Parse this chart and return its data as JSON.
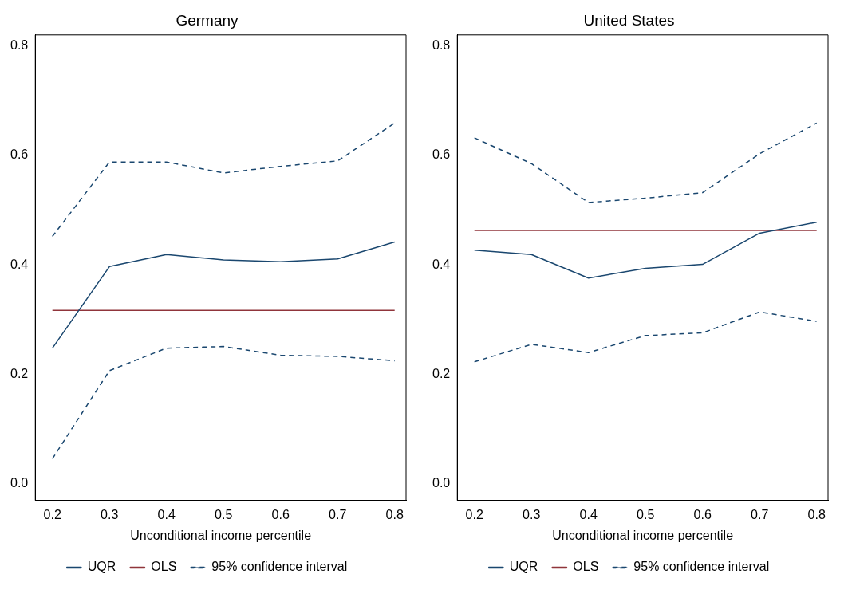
{
  "chart_data": [
    {
      "type": "line",
      "title": "Germany",
      "xlabel": "Unconditional income percentile",
      "x": [
        0.2,
        0.3,
        0.4,
        0.5,
        0.6,
        0.7,
        0.8
      ],
      "xlim": [
        0.17,
        0.82
      ],
      "xticks": [
        0.2,
        0.3,
        0.4,
        0.5,
        0.6,
        0.7,
        0.8
      ],
      "ylim": [
        -0.03,
        0.82
      ],
      "yticks": [
        {
          "value": 0,
          "label": "0.0"
        },
        0.2,
        0.4,
        0.6,
        0.8
      ],
      "grid": false,
      "legend": "bottom",
      "marker": "none",
      "series": [
        {
          "name": "UQR",
          "color": "#1a476f",
          "line_style": "solid",
          "values": [
            0.248,
            0.397,
            0.419,
            0.409,
            0.406,
            0.411,
            0.442
          ]
        },
        {
          "name": "OLS",
          "color": "#90353b",
          "line_style": "solid",
          "values": [
            0.317,
            0.317,
            0.317,
            0.317,
            0.317,
            0.317,
            0.317
          ]
        },
        {
          "name": "95% confidence interval",
          "color": "#1a476f",
          "line_style": "dashed",
          "values": [
            0.452,
            0.588,
            0.588,
            0.568,
            0.58,
            0.59,
            0.659
          ]
        },
        {
          "color": "#1a476f",
          "line_style": "dashed",
          "values": [
            0.046,
            0.207,
            0.248,
            0.251,
            0.235,
            0.233,
            0.225
          ]
        }
      ]
    },
    {
      "type": "line",
      "title": "United States",
      "xlabel": "Unconditional income percentile",
      "x": [
        0.2,
        0.3,
        0.4,
        0.5,
        0.6,
        0.7,
        0.8
      ],
      "xlim": [
        0.17,
        0.82
      ],
      "xticks": [
        0.2,
        0.3,
        0.4,
        0.5,
        0.6,
        0.7,
        0.8
      ],
      "ylim": [
        -0.03,
        0.82
      ],
      "yticks": [
        {
          "value": 0,
          "label": "0.0"
        },
        0.2,
        0.4,
        0.6,
        0.8
      ],
      "grid": false,
      "legend": "bottom",
      "marker": "none",
      "series": [
        {
          "name": "UQR",
          "color": "#1a476f",
          "line_style": "solid",
          "values": [
            0.427,
            0.419,
            0.376,
            0.394,
            0.401,
            0.458,
            0.478
          ]
        },
        {
          "name": "OLS",
          "color": "#90353b",
          "line_style": "solid",
          "values": [
            0.463,
            0.463,
            0.463,
            0.463,
            0.463,
            0.463,
            0.463
          ]
        },
        {
          "name": "95% confidence interval",
          "color": "#1a476f",
          "line_style": "dashed",
          "values": [
            0.632,
            0.585,
            0.514,
            0.522,
            0.532,
            0.603,
            0.659
          ]
        },
        {
          "color": "#1a476f",
          "line_style": "dashed",
          "values": [
            0.223,
            0.255,
            0.24,
            0.271,
            0.276,
            0.314,
            0.297
          ]
        }
      ]
    }
  ]
}
